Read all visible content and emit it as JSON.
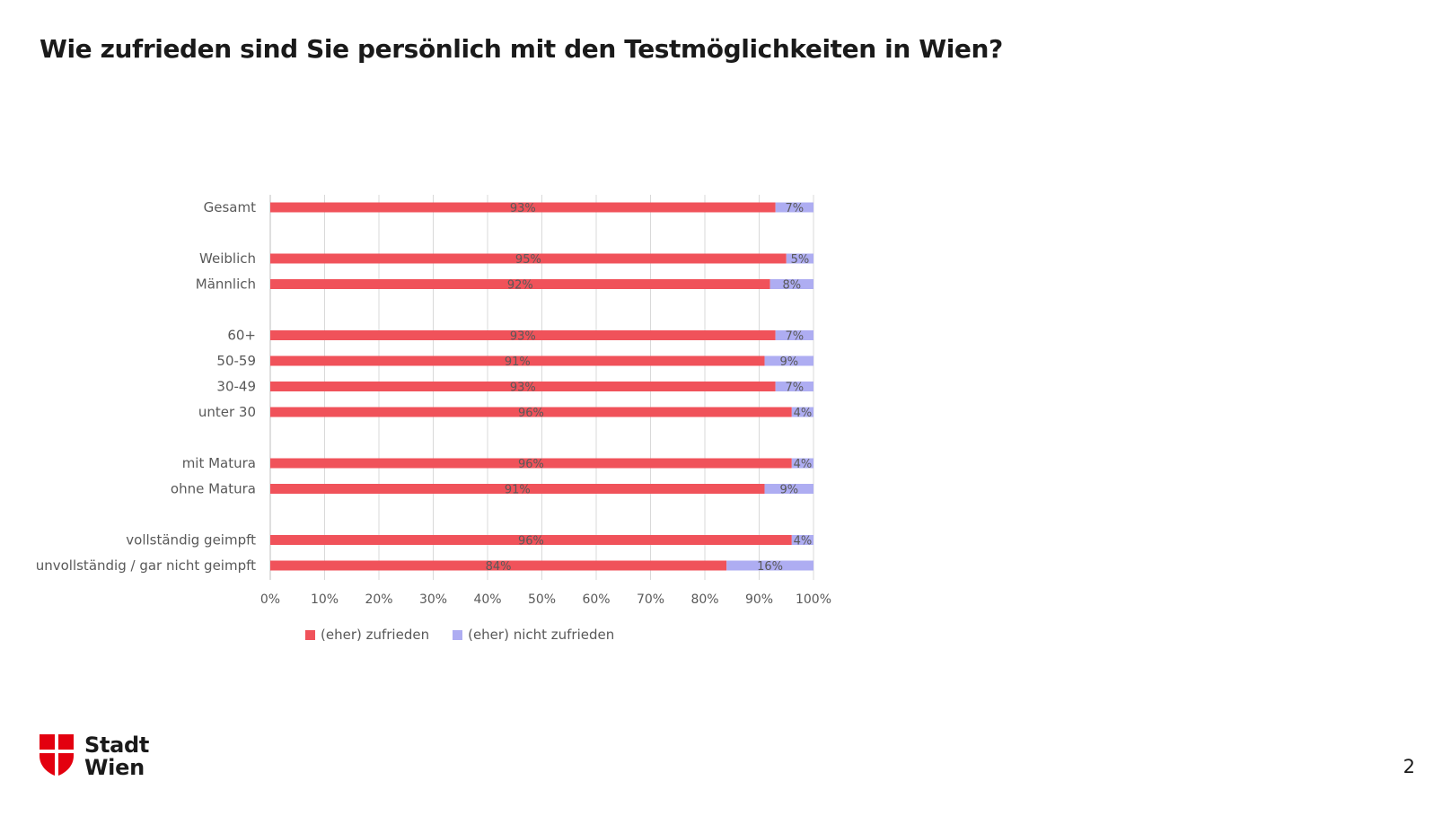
{
  "slide": {
    "title": "Wie zufrieden sind Sie persönlich mit den Testmöglichkeiten in Wien?",
    "page_number": "2"
  },
  "logo": {
    "line1": "Stadt",
    "line2": "Wien",
    "color": "#e3000f"
  },
  "chart_data": {
    "type": "bar",
    "orientation": "horizontal",
    "stacked": "percent",
    "categories": [
      "Gesamt",
      "Weiblich",
      "Männlich",
      "60+",
      "50-59",
      "30-49",
      "unter 30",
      "mit Matura",
      "ohne Matura",
      "vollständig geimpft",
      "unvollständig / gar nicht geimpft"
    ],
    "category_groups": [
      [
        0
      ],
      [
        1,
        2
      ],
      [
        3,
        4,
        5,
        6
      ],
      [
        7,
        8
      ],
      [
        9,
        10
      ]
    ],
    "series": [
      {
        "name": "(eher) zufrieden",
        "color": "#f0525a",
        "values": [
          93,
          95,
          92,
          93,
          91,
          93,
          96,
          96,
          91,
          96,
          84
        ],
        "labels": [
          "93%",
          "95%",
          "92%",
          "93%",
          "91%",
          "93%",
          "96%",
          "96%",
          "91%",
          "96%",
          "84%"
        ]
      },
      {
        "name": "(eher) nicht zufrieden",
        "color": "#aeadf2",
        "values": [
          7,
          5,
          8,
          7,
          9,
          7,
          4,
          4,
          9,
          4,
          16
        ],
        "labels": [
          "7%",
          "5%",
          "8%",
          "7%",
          "9%",
          "7%",
          "4%",
          "4%",
          "9%",
          "4%",
          "16%"
        ]
      }
    ],
    "xlim": [
      0,
      100
    ],
    "xticks": [
      "0%",
      "10%",
      "20%",
      "30%",
      "40%",
      "50%",
      "60%",
      "70%",
      "80%",
      "90%",
      "100%"
    ],
    "grid": true,
    "legend_position": "bottom-left"
  }
}
